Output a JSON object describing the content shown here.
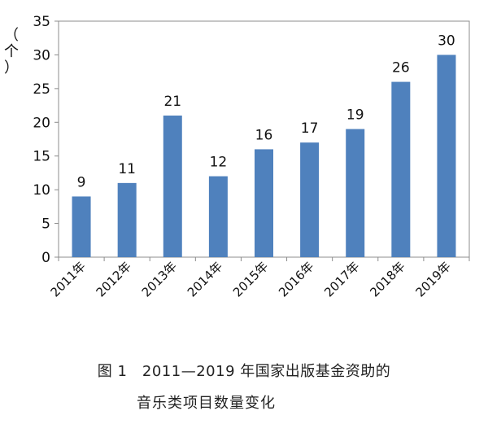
{
  "chart_data": {
    "type": "bar",
    "categories": [
      "2011年",
      "2012年",
      "2013年",
      "2014年",
      "2015年",
      "2016年",
      "2017年",
      "2018年",
      "2019年"
    ],
    "values": [
      9,
      11,
      21,
      12,
      16,
      17,
      19,
      26,
      30
    ],
    "ylabel_chars": [
      "（",
      "个",
      "）"
    ],
    "ylim": [
      0,
      35
    ],
    "yticks": [
      0,
      5,
      10,
      15,
      20,
      25,
      30,
      35
    ],
    "grid": false,
    "bar_color": "#4f81bd",
    "axis_color": "#8c8c8c"
  },
  "caption": {
    "line1": "图 1　2011—2019 年国家出版基金资助的",
    "line2": "音乐类项目数量变化"
  }
}
